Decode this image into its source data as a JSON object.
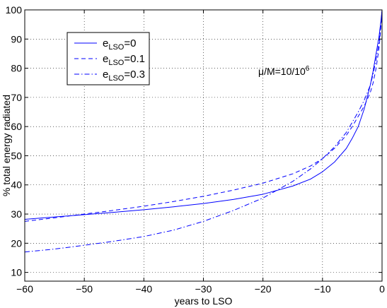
{
  "chart_data": {
    "type": "line",
    "xlabel": "years to LSO",
    "ylabel": "% total energy radiated",
    "xlim": [
      -60,
      0
    ],
    "ylim": [
      7,
      100
    ],
    "xticks": [
      -60,
      -50,
      -40,
      -30,
      -20,
      -10,
      0
    ],
    "yticks": [
      10,
      20,
      30,
      40,
      50,
      60,
      70,
      80,
      90,
      100
    ],
    "grid": true,
    "legend_position": "top-left",
    "line_color": "#0000ff",
    "annotation": {
      "prefix": "μ/M=10/10",
      "superscript": "6"
    },
    "series": [
      {
        "name": "e_LSO=0",
        "legend_main": "e",
        "legend_sub": "LSO",
        "legend_suffix": "=0",
        "dash": "solid",
        "x": [
          -60,
          -55,
          -50,
          -45,
          -40,
          -35,
          -30,
          -25,
          -20,
          -15,
          -12,
          -10,
          -8,
          -6,
          -5,
          -4,
          -3,
          -2,
          -1.5,
          -1,
          -0.5,
          -0.2,
          0
        ],
        "y": [
          28.2,
          29.0,
          29.8,
          30.6,
          31.5,
          32.5,
          33.6,
          35.0,
          36.8,
          39.6,
          42.0,
          44.5,
          47.8,
          52.5,
          56.0,
          60.0,
          66.0,
          74.0,
          79.0,
          85.0,
          91.0,
          96.0,
          100.0
        ]
      },
      {
        "name": "e_LSO=0.1",
        "legend_main": "e",
        "legend_sub": "LSO",
        "legend_suffix": "=0.1",
        "dash": "dashed",
        "x": [
          -60,
          -55,
          -50,
          -45,
          -40,
          -35,
          -30,
          -25,
          -20,
          -15,
          -12,
          -10,
          -8,
          -6,
          -5,
          -4,
          -3,
          -2,
          -1.5,
          -1,
          -0.5,
          -0.2,
          0
        ],
        "y": [
          27.5,
          28.7,
          30.0,
          31.3,
          32.7,
          34.3,
          36.1,
          38.2,
          40.6,
          43.8,
          46.5,
          49.0,
          52.5,
          57.0,
          60.0,
          63.5,
          67.0,
          71.5,
          75.0,
          80.0,
          87.0,
          94.0,
          100.0
        ]
      },
      {
        "name": "e_LSO=0.3",
        "legend_main": "e",
        "legend_sub": "LSO",
        "legend_suffix": "=0.3",
        "dash": "dashdot",
        "x": [
          -60,
          -55,
          -50,
          -45,
          -40,
          -35,
          -30,
          -25,
          -20,
          -15,
          -12,
          -10,
          -8,
          -6,
          -5,
          -4,
          -3,
          -2,
          -1.5,
          -1,
          -0.5,
          -0.2,
          0
        ],
        "y": [
          17.0,
          18.0,
          19.3,
          20.7,
          22.3,
          24.5,
          27.5,
          31.2,
          35.5,
          41.2,
          45.5,
          49.0,
          53.0,
          58.0,
          61.5,
          65.0,
          69.0,
          74.0,
          78.0,
          83.0,
          89.0,
          95.0,
          100.0
        ]
      }
    ]
  }
}
